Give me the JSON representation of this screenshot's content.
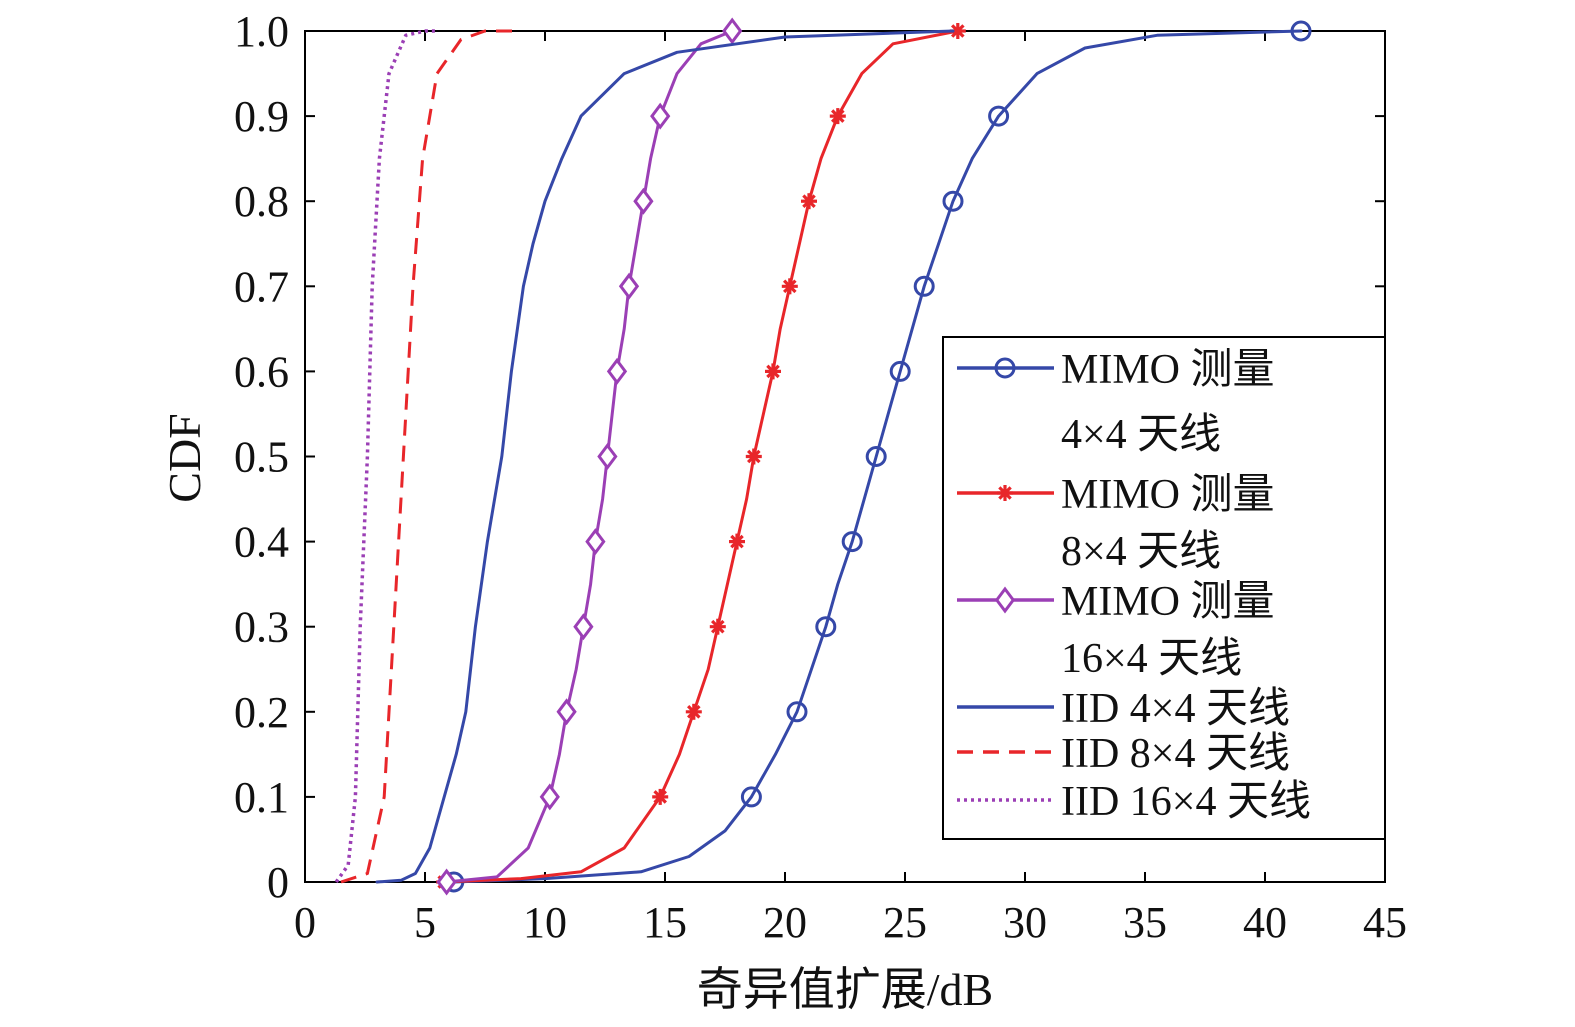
{
  "chart_data": {
    "type": "line",
    "title": "",
    "xlabel": "奇异值扩展/dB",
    "ylabel": "CDF",
    "xlim": [
      0,
      45
    ],
    "ylim": [
      0,
      1
    ],
    "x_ticks": [
      "0",
      "5",
      "10",
      "15",
      "20",
      "25",
      "30",
      "35",
      "40",
      "45"
    ],
    "y_ticks": [
      "0",
      "0.1",
      "0.2",
      "0.3",
      "0.4",
      "0.5",
      "0.6",
      "0.7",
      "0.8",
      "0.9",
      "1.0"
    ],
    "grid": false,
    "legend_position": "right",
    "series": [
      {
        "name": "MIMO 测量 4×4 天线",
        "legend_lines": [
          "MIMO 测量",
          "4×4 天线"
        ],
        "color": "#3548a8",
        "line": "solid",
        "marker": "circle",
        "points": [
          [
            6.2,
            0
          ],
          [
            10,
            0.004
          ],
          [
            14,
            0.012
          ],
          [
            16,
            0.03
          ],
          [
            17.5,
            0.06
          ],
          [
            18.6,
            0.1
          ],
          [
            19.6,
            0.15
          ],
          [
            20.5,
            0.2
          ],
          [
            21.1,
            0.25
          ],
          [
            21.7,
            0.3
          ],
          [
            22.2,
            0.35
          ],
          [
            22.8,
            0.4
          ],
          [
            23.3,
            0.45
          ],
          [
            23.8,
            0.5
          ],
          [
            24.3,
            0.55
          ],
          [
            24.8,
            0.6
          ],
          [
            25.3,
            0.65
          ],
          [
            25.8,
            0.7
          ],
          [
            26.4,
            0.75
          ],
          [
            27.0,
            0.8
          ],
          [
            27.8,
            0.85
          ],
          [
            28.9,
            0.9
          ],
          [
            30.5,
            0.95
          ],
          [
            32.5,
            0.98
          ],
          [
            35.5,
            0.995
          ],
          [
            41.5,
            1.0
          ]
        ],
        "marker_points": [
          [
            6.2,
            0
          ],
          [
            18.6,
            0.1
          ],
          [
            20.5,
            0.2
          ],
          [
            21.7,
            0.3
          ],
          [
            22.8,
            0.4
          ],
          [
            23.8,
            0.5
          ],
          [
            24.8,
            0.6
          ],
          [
            25.8,
            0.7
          ],
          [
            27.0,
            0.8
          ],
          [
            28.9,
            0.9
          ],
          [
            41.5,
            1.0
          ]
        ]
      },
      {
        "name": "MIMO 测量 8×4 天线",
        "legend_lines": [
          "MIMO 测量",
          "8×4 天线"
        ],
        "color": "#e8262a",
        "line": "solid",
        "marker": "asterisk",
        "points": [
          [
            5.8,
            0
          ],
          [
            9,
            0.004
          ],
          [
            11.5,
            0.012
          ],
          [
            13.3,
            0.04
          ],
          [
            14.8,
            0.1
          ],
          [
            15.6,
            0.15
          ],
          [
            16.2,
            0.2
          ],
          [
            16.8,
            0.25
          ],
          [
            17.2,
            0.3
          ],
          [
            17.6,
            0.35
          ],
          [
            18.0,
            0.4
          ],
          [
            18.4,
            0.45
          ],
          [
            18.7,
            0.5
          ],
          [
            19.1,
            0.55
          ],
          [
            19.5,
            0.6
          ],
          [
            19.8,
            0.65
          ],
          [
            20.2,
            0.7
          ],
          [
            20.6,
            0.75
          ],
          [
            21.0,
            0.8
          ],
          [
            21.5,
            0.85
          ],
          [
            22.2,
            0.9
          ],
          [
            23.2,
            0.95
          ],
          [
            24.5,
            0.985
          ],
          [
            27.2,
            1.0
          ]
        ],
        "marker_points": [
          [
            5.8,
            0
          ],
          [
            14.8,
            0.1
          ],
          [
            16.2,
            0.2
          ],
          [
            17.2,
            0.3
          ],
          [
            18.0,
            0.4
          ],
          [
            18.7,
            0.5
          ],
          [
            19.5,
            0.6
          ],
          [
            20.2,
            0.7
          ],
          [
            21.0,
            0.8
          ],
          [
            22.2,
            0.9
          ],
          [
            27.2,
            1.0
          ]
        ]
      },
      {
        "name": "MIMO 测量 16×4 天线",
        "legend_lines": [
          "MIMO 测量",
          "16×4 天线"
        ],
        "color": "#9b3fb5",
        "line": "solid",
        "marker": "diamond",
        "points": [
          [
            5.9,
            0
          ],
          [
            8,
            0.006
          ],
          [
            9.3,
            0.04
          ],
          [
            10.2,
            0.1
          ],
          [
            10.6,
            0.15
          ],
          [
            10.9,
            0.2
          ],
          [
            11.3,
            0.25
          ],
          [
            11.6,
            0.3
          ],
          [
            11.9,
            0.35
          ],
          [
            12.1,
            0.4
          ],
          [
            12.4,
            0.45
          ],
          [
            12.6,
            0.5
          ],
          [
            12.8,
            0.55
          ],
          [
            13.0,
            0.6
          ],
          [
            13.3,
            0.65
          ],
          [
            13.5,
            0.7
          ],
          [
            13.8,
            0.75
          ],
          [
            14.1,
            0.8
          ],
          [
            14.4,
            0.85
          ],
          [
            14.8,
            0.9
          ],
          [
            15.5,
            0.95
          ],
          [
            16.5,
            0.985
          ],
          [
            17.8,
            1.0
          ]
        ],
        "marker_points": [
          [
            5.9,
            0
          ],
          [
            10.2,
            0.1
          ],
          [
            10.9,
            0.2
          ],
          [
            11.6,
            0.3
          ],
          [
            12.1,
            0.4
          ],
          [
            12.6,
            0.5
          ],
          [
            13.0,
            0.6
          ],
          [
            13.5,
            0.7
          ],
          [
            14.1,
            0.8
          ],
          [
            14.8,
            0.9
          ],
          [
            17.8,
            1.0
          ]
        ]
      },
      {
        "name": "IID 4×4 天线",
        "legend_lines": [
          "IID 4×4 天线"
        ],
        "color": "#3548a8",
        "line": "solid",
        "marker": "none",
        "points": [
          [
            3.0,
            0
          ],
          [
            4.0,
            0.002
          ],
          [
            4.6,
            0.01
          ],
          [
            5.2,
            0.04
          ],
          [
            5.8,
            0.1
          ],
          [
            6.3,
            0.15
          ],
          [
            6.7,
            0.2
          ],
          [
            7.1,
            0.3
          ],
          [
            7.6,
            0.4
          ],
          [
            8.2,
            0.5
          ],
          [
            8.6,
            0.6
          ],
          [
            9.1,
            0.7
          ],
          [
            9.5,
            0.75
          ],
          [
            10.0,
            0.8
          ],
          [
            10.7,
            0.85
          ],
          [
            11.5,
            0.9
          ],
          [
            13.3,
            0.95
          ],
          [
            15.5,
            0.975
          ],
          [
            20.0,
            0.993
          ],
          [
            27.0,
            1.0
          ]
        ]
      },
      {
        "name": "IID 8×4 天线",
        "legend_lines": [
          "IID 8×4 天线"
        ],
        "color": "#e8262a",
        "line": "dashed",
        "marker": "none",
        "points": [
          [
            1.5,
            0
          ],
          [
            2.6,
            0.01
          ],
          [
            3.3,
            0.1
          ],
          [
            3.7,
            0.3
          ],
          [
            4.1,
            0.5
          ],
          [
            4.5,
            0.7
          ],
          [
            4.9,
            0.85
          ],
          [
            5.5,
            0.95
          ],
          [
            6.5,
            0.99
          ],
          [
            7.5,
            1.0
          ],
          [
            9.0,
            1.0
          ]
        ]
      },
      {
        "name": "IID 16×4 天线",
        "legend_lines": [
          "IID 16×4 天线"
        ],
        "color": "#9b3fb5",
        "line": "dotted",
        "marker": "none",
        "points": [
          [
            1.3,
            0
          ],
          [
            1.8,
            0.02
          ],
          [
            2.1,
            0.1
          ],
          [
            2.3,
            0.3
          ],
          [
            2.6,
            0.5
          ],
          [
            2.8,
            0.7
          ],
          [
            3.1,
            0.85
          ],
          [
            3.5,
            0.95
          ],
          [
            4.2,
            0.995
          ],
          [
            5.0,
            1.0
          ],
          [
            5.5,
            1.0
          ]
        ]
      }
    ]
  }
}
